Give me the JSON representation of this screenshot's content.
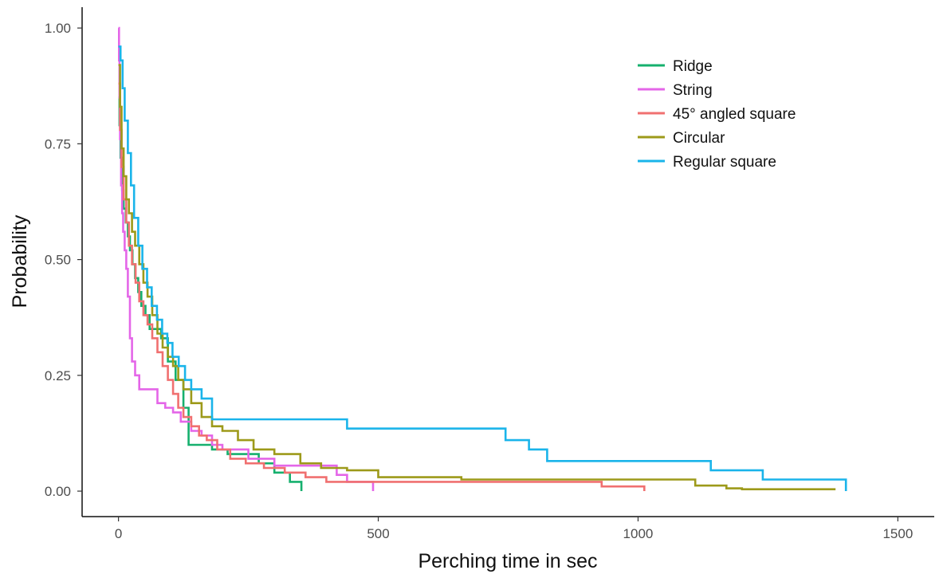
{
  "chart_data": {
    "type": "line",
    "xlabel": "Perching time in sec",
    "ylabel": "Probability",
    "xlim": [
      -70,
      1570
    ],
    "ylim": [
      -0.055,
      1.045
    ],
    "x_ticks": [
      "0",
      "500",
      "1000",
      "1500"
    ],
    "y_ticks": [
      "0.00",
      "0.25",
      "0.50",
      "0.75",
      "1.00"
    ],
    "grid": false,
    "legend_position": "top-right",
    "series": [
      {
        "name": "Ridge",
        "color": "#16b06e",
        "x": [
          0,
          2,
          4,
          7,
          10,
          14,
          18,
          22,
          27,
          32,
          38,
          44,
          52,
          60,
          70,
          82,
          95,
          110,
          125,
          135,
          150,
          180,
          210,
          240,
          270,
          300,
          330,
          350,
          352
        ],
        "y": [
          0.85,
          0.79,
          0.72,
          0.65,
          0.61,
          0.58,
          0.55,
          0.52,
          0.49,
          0.46,
          0.43,
          0.4,
          0.38,
          0.35,
          0.35,
          0.33,
          0.28,
          0.24,
          0.18,
          0.1,
          0.1,
          0.09,
          0.08,
          0.08,
          0.06,
          0.04,
          0.02,
          0.02,
          0.0
        ]
      },
      {
        "name": "String",
        "color": "#e466e8",
        "x": [
          0,
          1,
          2,
          3,
          5,
          7,
          9,
          12,
          15,
          18,
          22,
          26,
          32,
          40,
          60,
          75,
          90,
          105,
          120,
          140,
          160,
          180,
          200,
          250,
          300,
          400,
          420,
          440,
          480,
          490
        ],
        "y": [
          1.0,
          0.93,
          0.85,
          0.76,
          0.66,
          0.6,
          0.56,
          0.52,
          0.48,
          0.42,
          0.33,
          0.28,
          0.25,
          0.22,
          0.22,
          0.19,
          0.18,
          0.17,
          0.15,
          0.13,
          0.12,
          0.1,
          0.09,
          0.07,
          0.055,
          0.055,
          0.035,
          0.02,
          0.02,
          0.0
        ]
      },
      {
        "name": "45° angled square",
        "color": "#f07070",
        "x": [
          0,
          3,
          6,
          10,
          15,
          20,
          26,
          33,
          40,
          48,
          56,
          65,
          75,
          85,
          95,
          105,
          115,
          125,
          140,
          155,
          170,
          190,
          215,
          245,
          280,
          320,
          360,
          400,
          930,
          1010,
          1012
        ],
        "y": [
          0.88,
          0.78,
          0.7,
          0.63,
          0.58,
          0.53,
          0.49,
          0.45,
          0.41,
          0.38,
          0.36,
          0.33,
          0.3,
          0.27,
          0.24,
          0.21,
          0.18,
          0.16,
          0.14,
          0.12,
          0.11,
          0.09,
          0.07,
          0.06,
          0.05,
          0.04,
          0.03,
          0.02,
          0.01,
          0.01,
          0.0
        ]
      },
      {
        "name": "Circular",
        "color": "#9d9a1a",
        "x": [
          0,
          3,
          6,
          10,
          15,
          20,
          26,
          32,
          40,
          48,
          56,
          65,
          75,
          85,
          95,
          105,
          115,
          125,
          140,
          160,
          180,
          200,
          230,
          260,
          300,
          350,
          390,
          440,
          500,
          660,
          1110,
          1170,
          1200,
          1380
        ],
        "y": [
          0.92,
          0.83,
          0.74,
          0.68,
          0.63,
          0.6,
          0.56,
          0.53,
          0.49,
          0.45,
          0.42,
          0.38,
          0.34,
          0.31,
          0.29,
          0.27,
          0.24,
          0.22,
          0.19,
          0.16,
          0.14,
          0.13,
          0.11,
          0.09,
          0.08,
          0.06,
          0.05,
          0.045,
          0.03,
          0.025,
          0.012,
          0.006,
          0.004,
          0.004
        ]
      },
      {
        "name": "Regular square",
        "color": "#1ab4ea",
        "x": [
          0,
          4,
          8,
          12,
          18,
          24,
          30,
          38,
          46,
          55,
          64,
          74,
          84,
          94,
          104,
          116,
          128,
          140,
          160,
          180,
          440,
          560,
          630,
          745,
          790,
          825,
          1140,
          1240,
          1398,
          1400
        ],
        "y": [
          0.96,
          0.93,
          0.87,
          0.8,
          0.73,
          0.66,
          0.59,
          0.53,
          0.48,
          0.44,
          0.4,
          0.37,
          0.34,
          0.32,
          0.29,
          0.27,
          0.24,
          0.22,
          0.2,
          0.155,
          0.135,
          0.135,
          0.135,
          0.11,
          0.09,
          0.065,
          0.045,
          0.025,
          0.025,
          0.0
        ]
      }
    ]
  }
}
